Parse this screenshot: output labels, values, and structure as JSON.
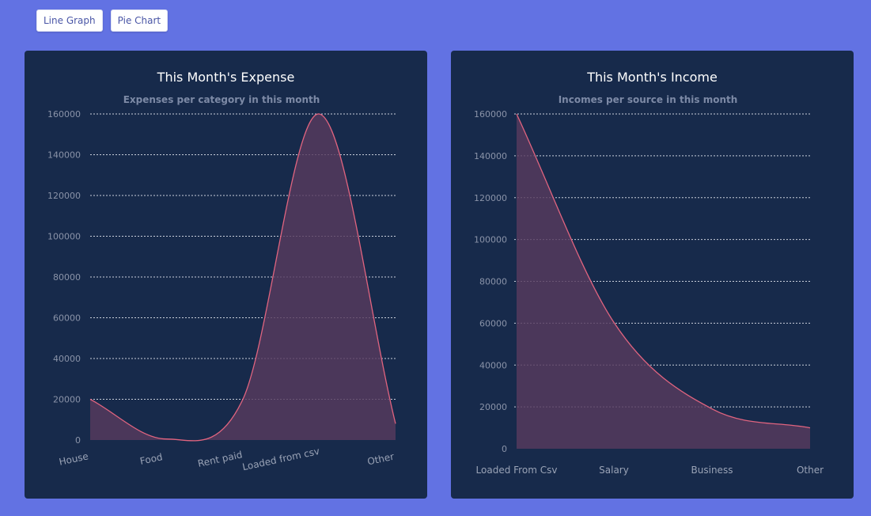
{
  "toolbar": {
    "line_graph_label": "Line Graph",
    "pie_chart_label": "Pie Chart"
  },
  "colors": {
    "background": "#6272e3",
    "card": "#172a4b",
    "series_line": "#e0647f",
    "series_fill": "#573a5e"
  },
  "chart_data": [
    {
      "type": "area",
      "title": "This Month's Expense",
      "subtitle": "Expenses per category in this month",
      "xlabel": "",
      "ylabel": "",
      "categories": [
        "House",
        "Food",
        "Rent paid",
        "Loaded from csv",
        "Other"
      ],
      "values": [
        20000,
        500,
        20000,
        160000,
        8000
      ],
      "yticks": [
        "0",
        "20000",
        "40000",
        "60000",
        "80000",
        "100000",
        "120000",
        "140000",
        "160000"
      ],
      "ylim": [
        0,
        160000
      ],
      "grid": true,
      "legend": "none"
    },
    {
      "type": "area",
      "title": "This Month's Income",
      "subtitle": "Incomes per source in this month",
      "xlabel": "",
      "ylabel": "",
      "categories": [
        "Loaded From Csv",
        "Salary",
        "Business",
        "Other"
      ],
      "values": [
        160000,
        60000,
        19000,
        10000
      ],
      "yticks": [
        "0",
        "20000",
        "40000",
        "60000",
        "80000",
        "100000",
        "120000",
        "140000",
        "160000"
      ],
      "ylim": [
        0,
        160000
      ],
      "grid": true,
      "legend": "none"
    }
  ]
}
